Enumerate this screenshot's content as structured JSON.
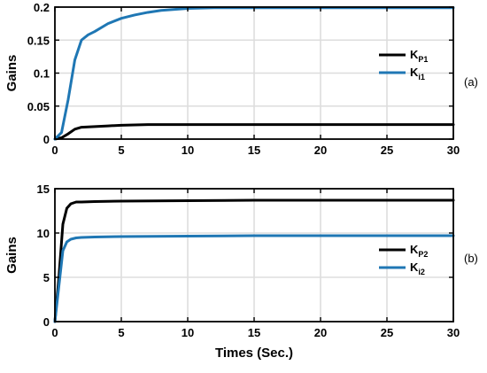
{
  "chart_data": [
    {
      "type": "line",
      "panel_label": "(a)",
      "ylabel": "Gains",
      "xlabel": "",
      "xlim": [
        0,
        30
      ],
      "ylim": [
        0,
        0.2
      ],
      "xticks": [
        "0",
        "5",
        "10",
        "15",
        "20",
        "25",
        "30"
      ],
      "yticks": [
        "0",
        "0.05",
        "0.1",
        "0.15",
        "0.2"
      ],
      "grid": true,
      "legend_position": "center-right",
      "series": [
        {
          "name": "K",
          "name_sub": "P1",
          "color": "#000000",
          "x": [
            0,
            0.5,
            1,
            1.5,
            2,
            3,
            4,
            5,
            7,
            10,
            15,
            20,
            25,
            30
          ],
          "y": [
            0,
            0.002,
            0.008,
            0.015,
            0.018,
            0.019,
            0.02,
            0.021,
            0.022,
            0.022,
            0.022,
            0.022,
            0.022,
            0.022
          ]
        },
        {
          "name": "K",
          "name_sub": "i1",
          "color": "#1f77b4",
          "x": [
            0,
            0.5,
            1,
            1.5,
            2,
            2.5,
            3,
            4,
            5,
            6,
            7,
            8,
            10,
            12,
            15,
            20,
            25,
            30
          ],
          "y": [
            0,
            0.01,
            0.06,
            0.12,
            0.15,
            0.158,
            0.163,
            0.175,
            0.183,
            0.188,
            0.192,
            0.195,
            0.198,
            0.199,
            0.199,
            0.199,
            0.199,
            0.199
          ]
        }
      ]
    },
    {
      "type": "line",
      "panel_label": "(b)",
      "ylabel": "Gains",
      "xlabel": "Times (Sec.)",
      "xlim": [
        0,
        30
      ],
      "ylim": [
        0,
        15
      ],
      "xticks": [
        "0",
        "5",
        "10",
        "15",
        "20",
        "25",
        "30"
      ],
      "yticks": [
        "0",
        "5",
        "10",
        "15"
      ],
      "grid": true,
      "legend_position": "bottom-right",
      "series": [
        {
          "name": "K",
          "name_sub": "P2",
          "color": "#000000",
          "x": [
            0,
            0.3,
            0.6,
            0.9,
            1.2,
            1.6,
            2,
            3,
            5,
            10,
            15,
            20,
            25,
            30
          ],
          "y": [
            0,
            5,
            11,
            12.8,
            13.3,
            13.5,
            13.5,
            13.55,
            13.6,
            13.65,
            13.7,
            13.7,
            13.7,
            13.7
          ]
        },
        {
          "name": "K",
          "name_sub": "i2",
          "color": "#1f77b4",
          "x": [
            0,
            0.3,
            0.6,
            0.9,
            1.2,
            1.6,
            2,
            3,
            5,
            10,
            15,
            20,
            25,
            30
          ],
          "y": [
            0,
            4,
            8,
            9.0,
            9.3,
            9.45,
            9.5,
            9.55,
            9.6,
            9.65,
            9.7,
            9.7,
            9.7,
            9.7
          ]
        }
      ]
    }
  ]
}
